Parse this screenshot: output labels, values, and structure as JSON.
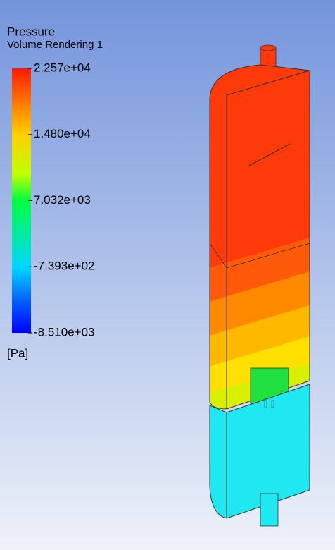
{
  "legend": {
    "title": "Pressure",
    "subtitle": "Volume Rendering 1",
    "ticks": [
      {
        "value": 22570,
        "label": "2.257e+04"
      },
      {
        "value": 14800,
        "label": "1.480e+04"
      },
      {
        "value": 7032,
        "label": "7.032e+03"
      },
      {
        "value": -739.3,
        "label": "-7.393e+02"
      },
      {
        "value": -8510,
        "label": "-8.510e+03"
      }
    ],
    "unit": "[Pa]"
  }
}
